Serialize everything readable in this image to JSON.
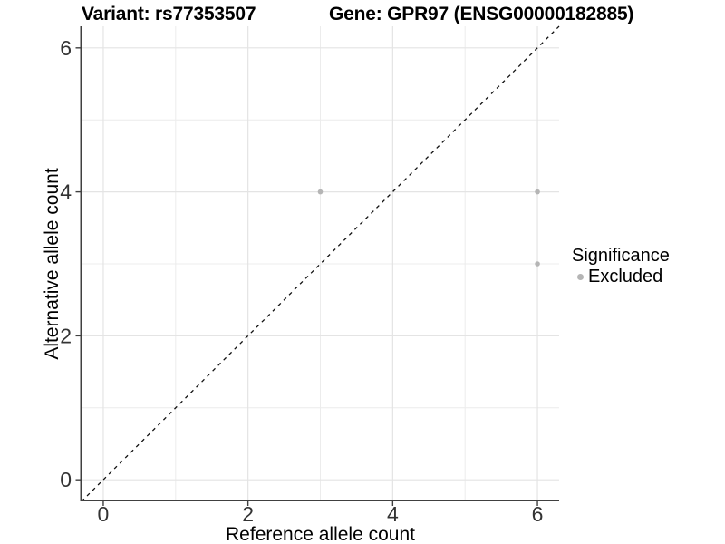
{
  "header": {
    "title_left": "Variant: rs77353507",
    "title_right": "Gene: GPR97 (ENSG00000182885)"
  },
  "legend": {
    "title": "Significance",
    "items": [
      {
        "label": "Excluded",
        "color": "#b5b5b5"
      }
    ]
  },
  "colors": {
    "background": "#ffffff",
    "grid_major": "#e4e4e4",
    "grid_minor": "#ececec",
    "axis_line": "#404040",
    "tick_mark": "#404040",
    "tick_text": "#333333",
    "axis_title_text": "#000000",
    "reference_line": "#111111",
    "point": "#b5b5b5"
  },
  "chart_data": {
    "type": "scatter",
    "title": "Variant: rs77353507    Gene: GPR97 (ENSG00000182885)",
    "xlabel": "Reference allele count",
    "ylabel": "Alternative allele count",
    "xlim": [
      -0.3,
      6.3
    ],
    "ylim": [
      -0.3,
      6.3
    ],
    "x_ticks": [
      0,
      2,
      4,
      6
    ],
    "y_ticks": [
      0,
      2,
      4,
      6
    ],
    "x_minor_ticks": [
      1,
      3,
      5
    ],
    "y_minor_ticks": [
      1,
      3,
      5
    ],
    "grid": true,
    "legend_position": "right",
    "series": [
      {
        "name": "Excluded",
        "color": "#b5b5b5",
        "marker": "circle",
        "points": [
          [
            3,
            4
          ],
          [
            6,
            4
          ],
          [
            6,
            3
          ]
        ]
      }
    ],
    "reference_line": {
      "type": "identity",
      "slope": 1,
      "intercept": 0,
      "style": "dashed",
      "color": "#111111"
    }
  }
}
